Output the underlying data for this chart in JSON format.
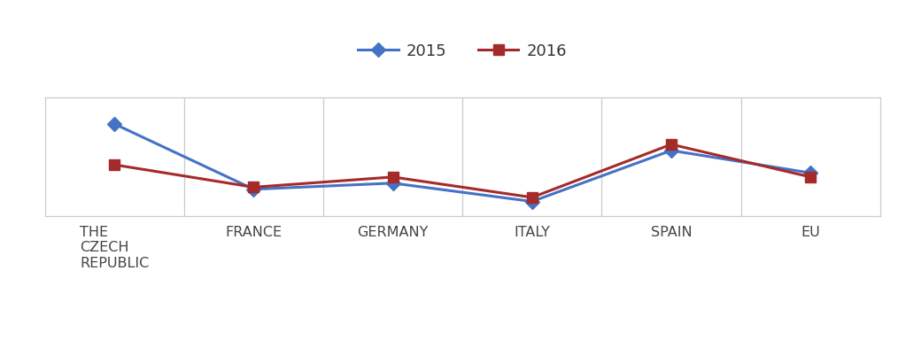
{
  "categories": [
    "THE\nCZECH\nREPUBLIC",
    "FRANCE",
    "GERMANY",
    "ITALY",
    "SPAIN",
    "EU"
  ],
  "series": {
    "2015": [
      4.5,
      1.3,
      1.6,
      0.7,
      3.2,
      2.1
    ],
    "2016": [
      2.5,
      1.4,
      1.9,
      0.9,
      3.5,
      1.9
    ]
  },
  "colors": {
    "2015": "#4472C4",
    "2016": "#A52A2A"
  },
  "markers": {
    "2015": "D",
    "2016": "s"
  },
  "legend_labels": [
    "2015",
    "2016"
  ],
  "ylim": [
    0.0,
    5.8
  ],
  "xlim": [
    -0.5,
    5.5
  ],
  "background_color": "#ffffff",
  "border_color": "#cccccc",
  "line_width": 2.2,
  "marker_size": 8,
  "tick_label_fontsize": 11.5,
  "legend_fontsize": 13
}
